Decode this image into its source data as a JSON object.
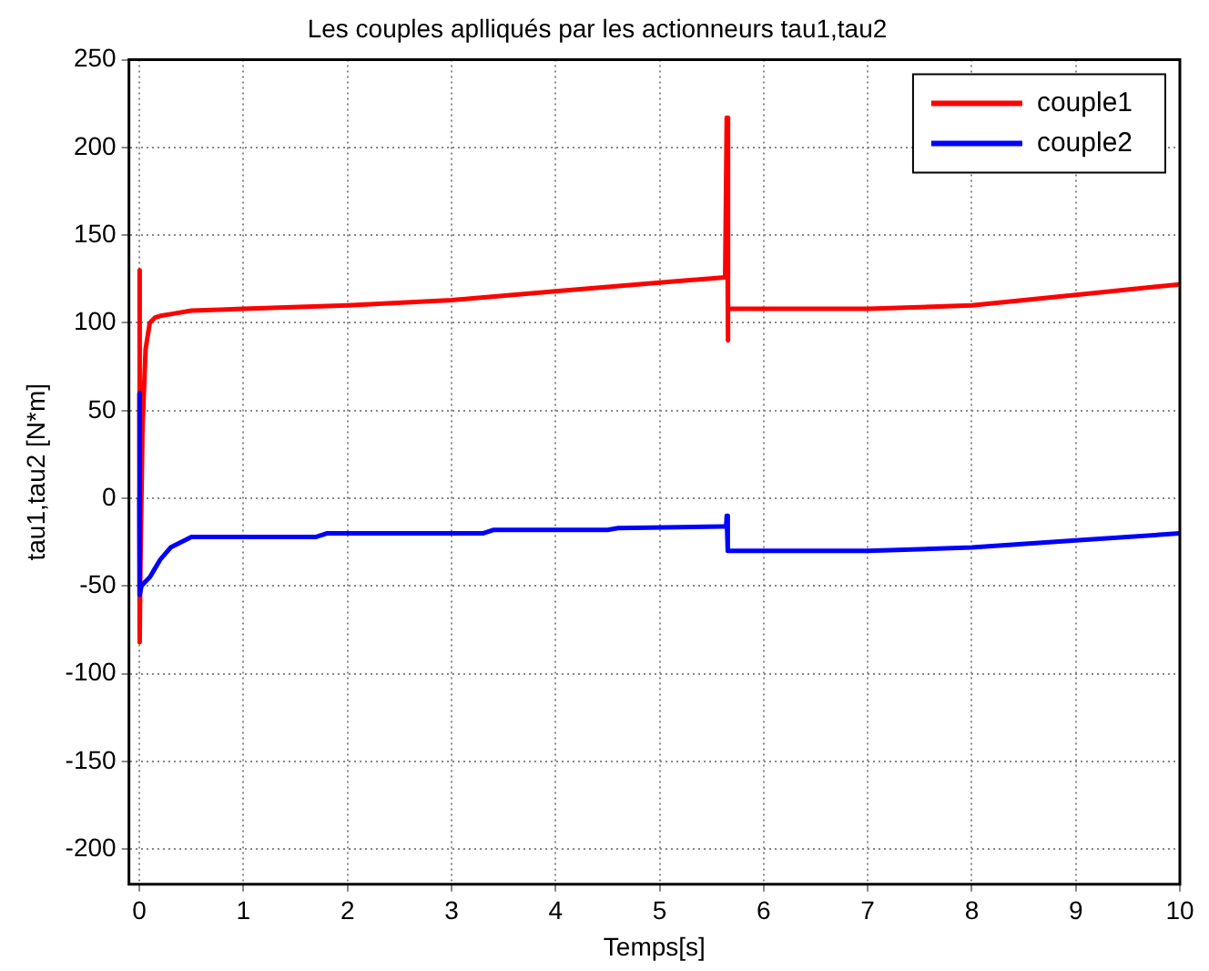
{
  "chart_data": {
    "type": "line",
    "title": "Les couples aplliqués par les actionneurs tau1,tau2",
    "xlabel": "Temps[s]",
    "ylabel": "tau1,tau2 [N*m]",
    "series": [
      {
        "name": "couple1",
        "color": "#ff0000",
        "x": [
          0,
          0.001,
          0.005,
          0.01,
          0.03,
          0.06,
          0.1,
          0.15,
          0.2,
          0.3,
          0.5,
          1,
          2,
          3,
          4,
          5,
          5.63,
          5.64,
          5.645,
          5.655,
          5.66,
          5.7,
          6,
          7,
          8,
          9,
          10
        ],
        "values": [
          60,
          130,
          -82,
          -40,
          40,
          85,
          100,
          103,
          104,
          105,
          107,
          108,
          110,
          113,
          118,
          123,
          126,
          126,
          217,
          90,
          108,
          108,
          108,
          108,
          110,
          116,
          122
        ]
      },
      {
        "name": "couple2",
        "color": "#0000ff",
        "x": [
          0,
          0.001,
          0.005,
          0.02,
          0.05,
          0.1,
          0.15,
          0.2,
          0.3,
          0.5,
          1,
          1.7,
          1.8,
          3.3,
          3.4,
          4.5,
          4.6,
          5.6,
          5.64,
          5.645,
          5.655,
          5.7,
          7,
          8,
          9,
          10
        ],
        "values": [
          0,
          60,
          -55,
          -50,
          -48,
          -45,
          -40,
          -35,
          -28,
          -22,
          -22,
          -22,
          -20,
          -20,
          -18,
          -18,
          -17,
          -16,
          -16,
          -10,
          -30,
          -30,
          -30,
          -28,
          -24,
          -20
        ]
      }
    ],
    "xlim": [
      -0.1,
      10
    ],
    "xticks": [
      0,
      1,
      2,
      3,
      4,
      5,
      6,
      7,
      8,
      9,
      10
    ],
    "ylim": [
      -220,
      250
    ],
    "yticks": [
      -200,
      -150,
      -100,
      -50,
      0,
      50,
      100,
      150,
      200,
      250
    ],
    "grid": true,
    "legend": "top right",
    "marker": "none",
    "line_style": "solid"
  }
}
